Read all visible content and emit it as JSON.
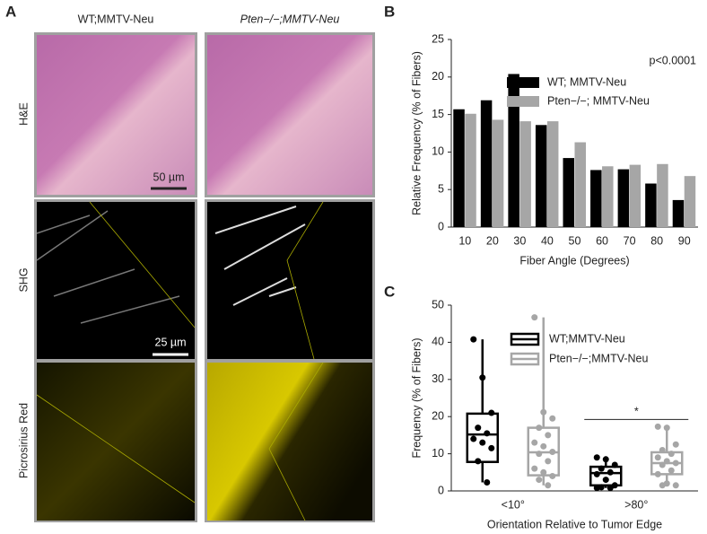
{
  "figure": {
    "panel_labels": [
      "A",
      "B",
      "C"
    ],
    "column_labels": [
      "WT;MMTV-Neu",
      "Pten−/−;MMTV-Neu"
    ],
    "row_labels": [
      "H&E",
      "SHG",
      "Picrosirius Red"
    ],
    "scale_bars": [
      "50 µm",
      "25 µm"
    ]
  },
  "chart_data": [
    {
      "type": "bar",
      "categories": [
        "10",
        "20",
        "30",
        "40",
        "50",
        "60",
        "70",
        "80",
        "90"
      ],
      "series": [
        {
          "name": "WT; MMTV-Neu",
          "color": "#000000",
          "values": [
            15.7,
            16.9,
            20.4,
            13.6,
            9.2,
            7.6,
            7.7,
            5.8,
            3.6
          ]
        },
        {
          "name": "Pten−/−; MMTV-Neu",
          "color": "#a6a6a6",
          "values": [
            15.1,
            14.3,
            14.1,
            14.1,
            11.3,
            8.1,
            8.3,
            8.4,
            6.8
          ]
        }
      ],
      "ylim": [
        0,
        25
      ],
      "yticks": [
        0,
        5,
        10,
        15,
        20,
        25
      ],
      "xlabel": "Fiber Angle (Degrees)",
      "ylabel": "Relative Frequency (% of Fibers)",
      "annotation": "p<0.0001",
      "legend": "upper right"
    },
    {
      "type": "box",
      "categories": [
        "<10°",
        ">80°"
      ],
      "series": [
        {
          "name": "WT;MMTV-Neu",
          "color": "#000000",
          "boxes": [
            {
              "min": 2.3,
              "q1": 7.8,
              "median": 15.2,
              "q3": 20.8,
              "max": 40.8,
              "points": [
                40.8,
                30.5,
                21,
                17,
                15.5,
                14,
                13,
                11.5,
                8,
                2.3
              ]
            },
            {
              "min": 0.8,
              "q1": 1.5,
              "median": 4.8,
              "q3": 6.5,
              "max": 9,
              "points": [
                9,
                8.5,
                7,
                6,
                5,
                4.5,
                3,
                1.5,
                1,
                0.8,
                0.8
              ]
            }
          ]
        },
        {
          "name": "Pten−/−;MMTV-Neu",
          "color": "#a6a6a6",
          "boxes": [
            {
              "min": 1.5,
              "q1": 4.2,
              "median": 10.4,
              "q3": 17,
              "max": 46.7,
              "points": [
                46.7,
                21.2,
                19.5,
                17,
                15,
                13,
                12,
                10.5,
                10,
                8,
                6,
                5,
                4,
                3,
                1.5
              ]
            },
            {
              "min": 1.5,
              "q1": 4.5,
              "median": 7.5,
              "q3": 10.4,
              "max": 17.3,
              "points": [
                17.3,
                17,
                12.5,
                11,
                10,
                9,
                8,
                7.5,
                7,
                5.5,
                4.5,
                2,
                1.5,
                1.5
              ]
            }
          ]
        }
      ],
      "ylim": [
        0,
        50
      ],
      "yticks": [
        0,
        10,
        20,
        30,
        40,
        50
      ],
      "xlabel": "Orientation Relative to Tumor Edge",
      "ylabel": "Frequency (% of  Fibers)",
      "significance": "*",
      "legend": "upper right"
    }
  ]
}
